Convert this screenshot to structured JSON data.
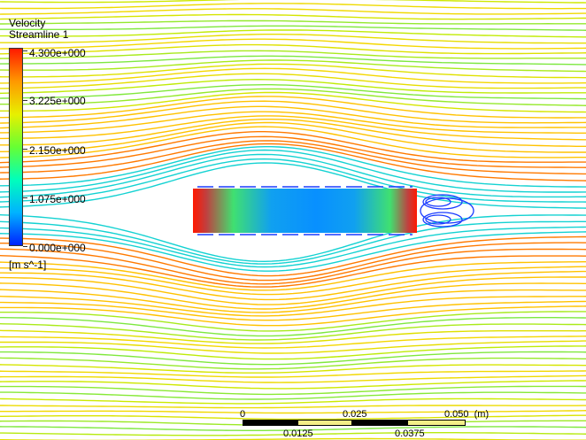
{
  "legend": {
    "title": "Velocity",
    "subtitle": "Streamline 1",
    "ticks": [
      "4.300e+000",
      "3.225e+000",
      "2.150e+000",
      "1.075e+000",
      "0.000e+000"
    ],
    "unit": "[m s^-1]",
    "colors": [
      "#ff1a00",
      "#ff9900",
      "#e8f000",
      "#66ff33",
      "#00ffbb",
      "#00b3ff",
      "#0022ff"
    ]
  },
  "scale_bar": {
    "top_labels": [
      "0",
      "0.025",
      "0.050  (m)"
    ],
    "bottom_labels": [
      "0.0125",
      "0.0375"
    ]
  },
  "colors": {
    "background": "#ffffff",
    "high": "#ff2200",
    "mid": "#ffd000",
    "low": "#1040ff"
  }
}
